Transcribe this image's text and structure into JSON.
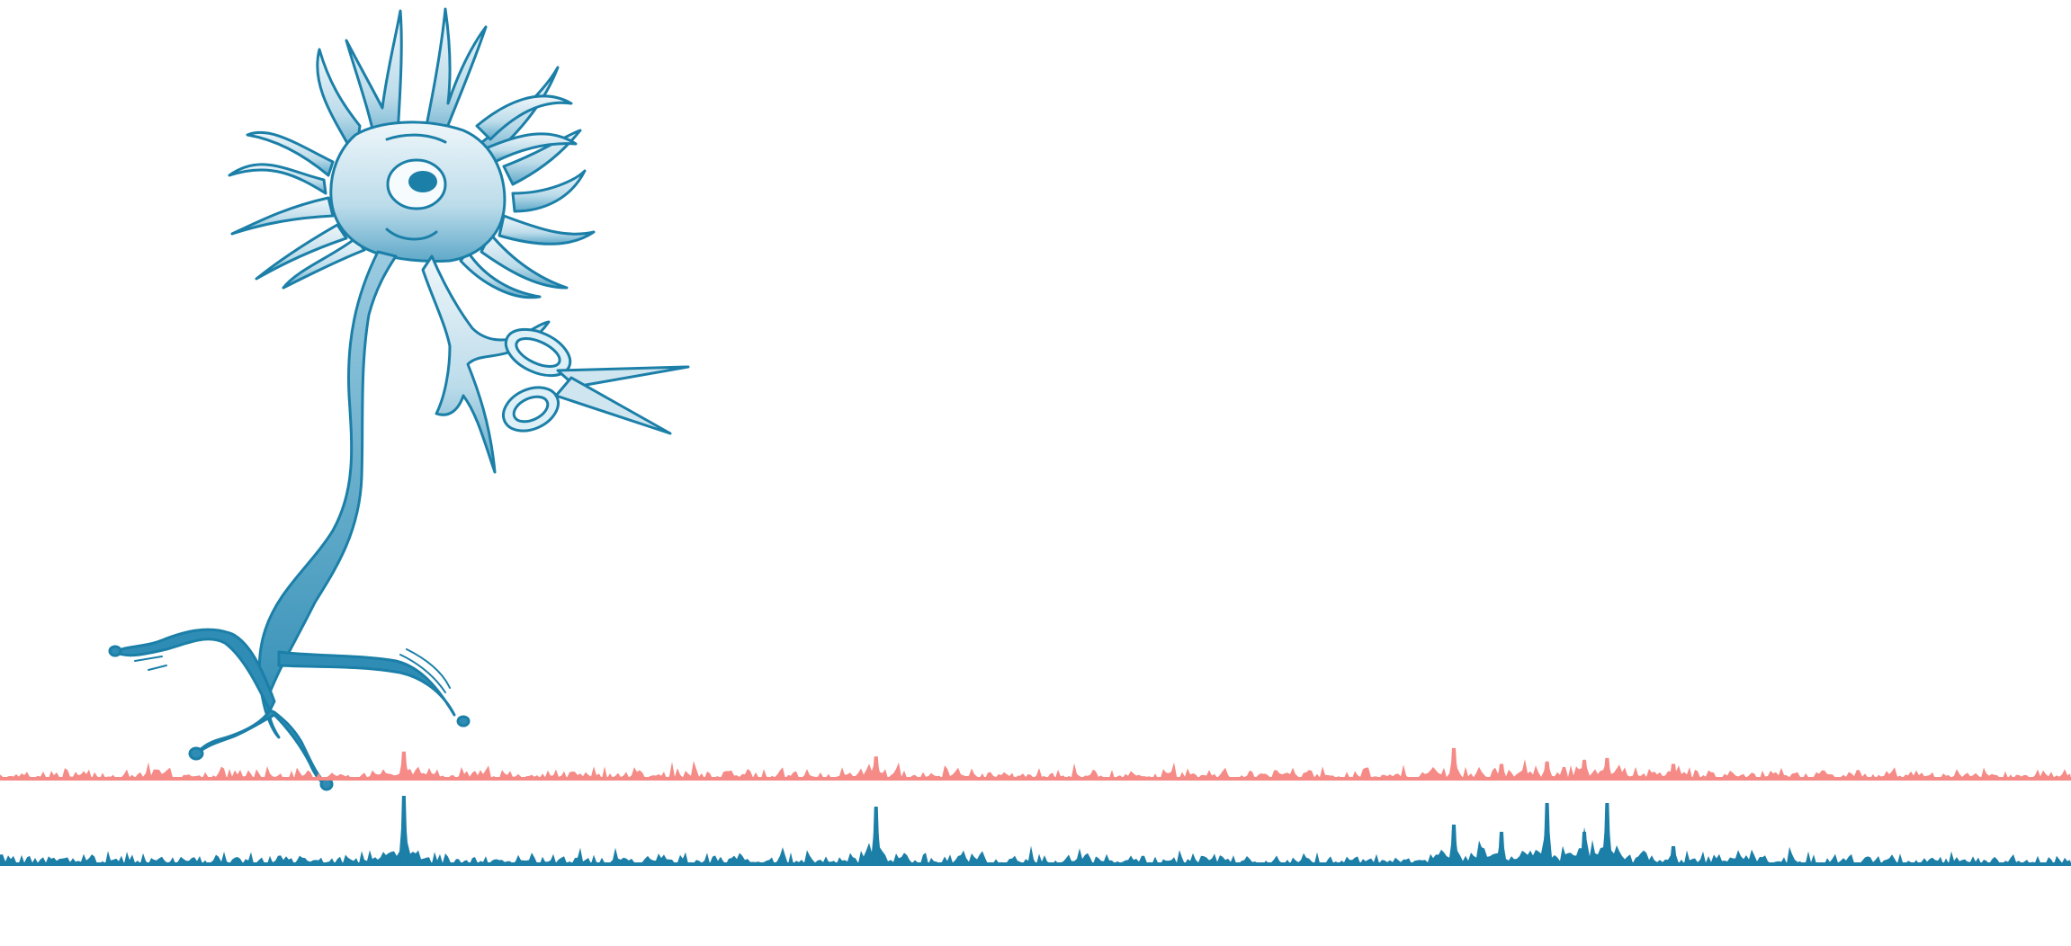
{
  "illustration": {
    "subject": "neuron-with-scissors",
    "fill_color_light": "#e8f3f8",
    "fill_color_dark": "#2f8db5",
    "outline_color": "#1b7fa8"
  },
  "signal_tracks": [
    {
      "track": "upper",
      "color": "#f58a86",
      "peaks": [
        {
          "position": 0.195,
          "height": 0.55
        },
        {
          "position": 0.423,
          "height": 0.45
        },
        {
          "position": 0.702,
          "height": 0.62
        },
        {
          "position": 0.725,
          "height": 0.3
        },
        {
          "position": 0.747,
          "height": 0.35
        },
        {
          "position": 0.765,
          "height": 0.38
        },
        {
          "position": 0.776,
          "height": 0.42
        },
        {
          "position": 0.808,
          "height": 0.3
        }
      ]
    },
    {
      "track": "lower",
      "color": "#1b7fa8",
      "peaks": [
        {
          "position": 0.195,
          "height": 0.95
        },
        {
          "position": 0.423,
          "height": 0.8
        },
        {
          "position": 0.702,
          "height": 0.55
        },
        {
          "position": 0.725,
          "height": 0.45
        },
        {
          "position": 0.747,
          "height": 0.85
        },
        {
          "position": 0.765,
          "height": 0.45
        },
        {
          "position": 0.776,
          "height": 0.85
        },
        {
          "position": 0.808,
          "height": 0.25
        }
      ]
    }
  ]
}
